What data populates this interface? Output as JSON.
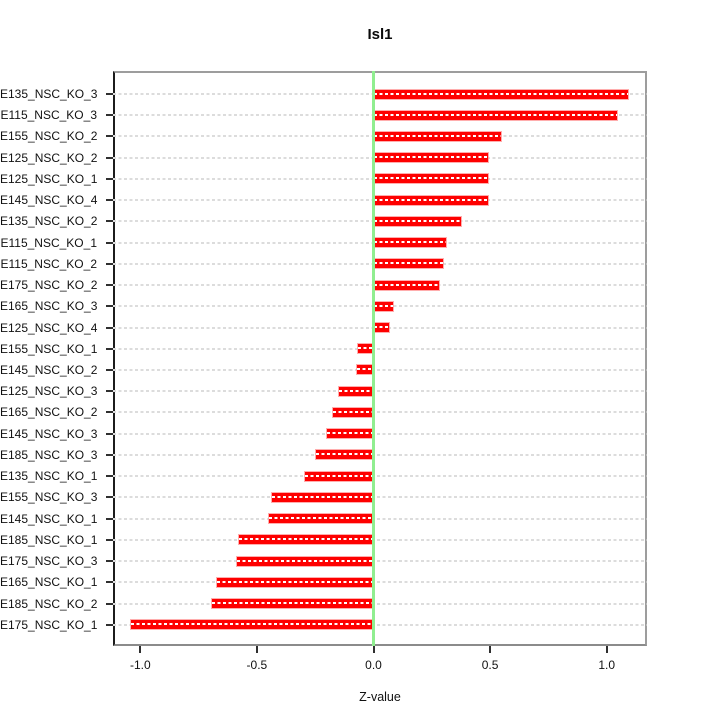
{
  "chart_data": {
    "type": "bar",
    "orientation": "horizontal",
    "title": "Isl1",
    "xlabel": "Z-value",
    "xlim": [
      -1.12,
      1.17
    ],
    "xticks": [
      -1.0,
      -0.5,
      0.0,
      0.5,
      1.0
    ],
    "xtick_labels": [
      "-1.0",
      "-0.5",
      "0.0",
      "0.5",
      "1.0"
    ],
    "grid": "horizontal-dashed-per-category",
    "legend": "none",
    "bar_color": "#ff0000",
    "bar_highlight_color": "#ff9191",
    "zero_line_color": "#90ee90",
    "grid_color": "#dcdcdc",
    "rows": [
      {
        "label": "E135_NSC_KO_3",
        "value": 1.093
      },
      {
        "label": "E115_NSC_KO_3",
        "value": 1.046
      },
      {
        "label": "E155_NSC_KO_2",
        "value": 0.546
      },
      {
        "label": "E125_NSC_KO_2",
        "value": 0.493
      },
      {
        "label": "E125_NSC_KO_1",
        "value": 0.492
      },
      {
        "label": "E145_NSC_KO_4",
        "value": 0.49
      },
      {
        "label": "E135_NSC_KO_2",
        "value": 0.374
      },
      {
        "label": "E115_NSC_KO_1",
        "value": 0.311
      },
      {
        "label": "E115_NSC_KO_2",
        "value": 0.299
      },
      {
        "label": "E175_NSC_KO_2",
        "value": 0.281
      },
      {
        "label": "E165_NSC_KO_3",
        "value": 0.082
      },
      {
        "label": "E125_NSC_KO_4",
        "value": 0.068
      },
      {
        "label": "E155_NSC_KO_1",
        "value": -0.065
      },
      {
        "label": "E145_NSC_KO_2",
        "value": -0.072
      },
      {
        "label": "E125_NSC_KO_3",
        "value": -0.147
      },
      {
        "label": "E165_NSC_KO_2",
        "value": -0.173
      },
      {
        "label": "E145_NSC_KO_3",
        "value": -0.198
      },
      {
        "label": "E185_NSC_KO_3",
        "value": -0.247
      },
      {
        "label": "E135_NSC_KO_1",
        "value": -0.294
      },
      {
        "label": "E155_NSC_KO_3",
        "value": -0.435
      },
      {
        "label": "E145_NSC_KO_1",
        "value": -0.447
      },
      {
        "label": "E185_NSC_KO_1",
        "value": -0.576
      },
      {
        "label": "E175_NSC_KO_3",
        "value": -0.587
      },
      {
        "label": "E165_NSC_KO_1",
        "value": -0.672
      },
      {
        "label": "E185_NSC_KO_2",
        "value": -0.694
      },
      {
        "label": "E175_NSC_KO_1",
        "value": -1.04
      }
    ]
  }
}
